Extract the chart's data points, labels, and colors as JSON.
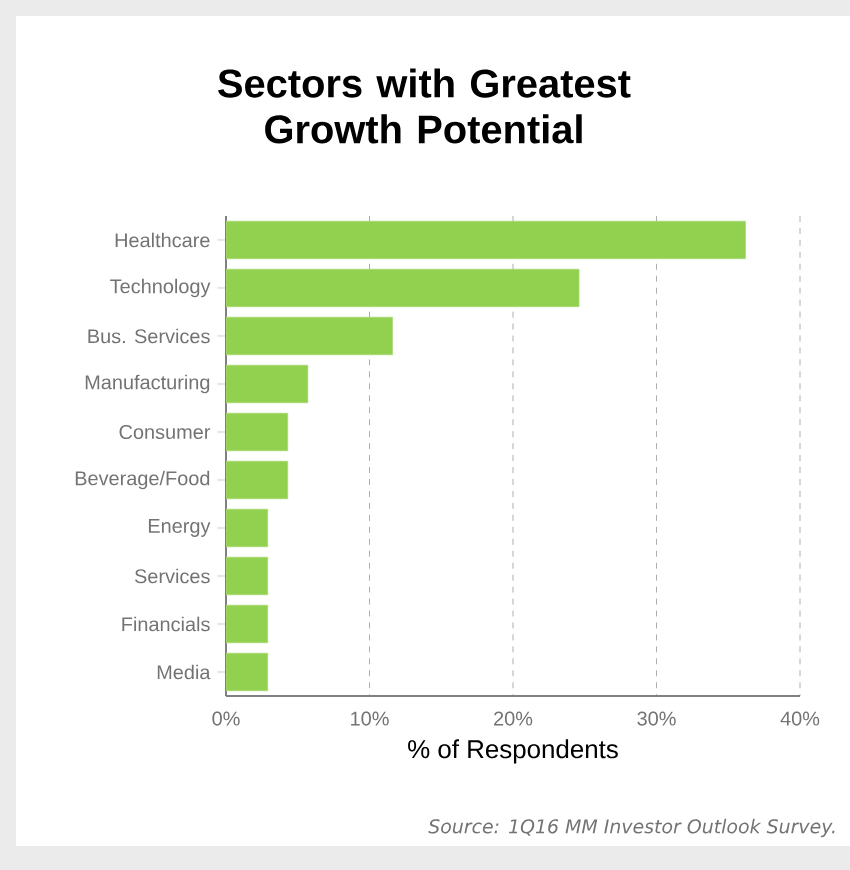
{
  "chart_data": {
    "type": "bar",
    "orientation": "horizontal",
    "title": "Sectors with Greatest Growth Potential",
    "categories": [
      "Healthcare",
      "Technology",
      "Bus. Services",
      "Manufacturing",
      "Consumer",
      "Beverage/Food",
      "Energy",
      "Services",
      "Financials",
      "Media"
    ],
    "values": [
      36.2,
      24.6,
      11.6,
      5.7,
      4.3,
      4.3,
      2.9,
      2.9,
      2.9,
      2.9
    ],
    "color": "#92d050",
    "xlim": [
      0,
      40
    ],
    "xticks": [
      {
        "value": 0,
        "label": "0%"
      },
      {
        "value": 10,
        "label": "10%"
      },
      {
        "value": 20,
        "label": "20%"
      },
      {
        "value": 30,
        "label": "30%"
      },
      {
        "value": 40,
        "label": "40%"
      }
    ],
    "xlabel": "% of Respondents",
    "grid": "x",
    "annotations": [
      "Source: 1Q16 MM Investor Outlook Survey."
    ]
  }
}
